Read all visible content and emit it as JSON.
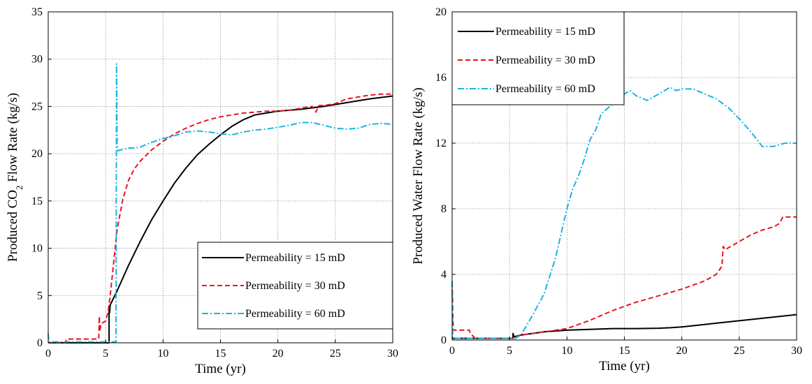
{
  "chart_data": [
    {
      "type": "line",
      "xlabel": "Time (yr)",
      "ylabel_parts": [
        "Produced CO",
        "2",
        " Flow Rate (kg/s)"
      ],
      "xlim": [
        0,
        30
      ],
      "ylim": [
        0,
        35
      ],
      "xticks": [
        0,
        5,
        10,
        15,
        20,
        25,
        30
      ],
      "yticks": [
        0,
        5,
        10,
        15,
        20,
        25,
        30,
        35
      ],
      "grid": true,
      "legend_position": "bottom-right",
      "series": [
        {
          "name": "Permeability = 15 mD",
          "color": "#000000",
          "dash": "solid",
          "x": [
            0,
            5.3,
            5.3,
            5.35,
            5.4,
            6,
            7,
            8,
            9,
            10,
            11,
            12,
            13,
            14,
            15,
            16,
            17,
            18,
            19,
            20,
            22,
            24,
            26,
            28,
            30
          ],
          "y": [
            0,
            0,
            3.9,
            3.2,
            4.0,
            5.5,
            8.2,
            10.7,
            13.0,
            15.0,
            16.9,
            18.5,
            19.9,
            21.0,
            22.0,
            22.9,
            23.6,
            24.1,
            24.3,
            24.5,
            24.7,
            25.0,
            25.4,
            25.8,
            26.1
          ]
        },
        {
          "name": "Permeability = 30 mD",
          "color": "#e8141e",
          "dash": "dashed",
          "x": [
            0,
            1.5,
            1.6,
            4.4,
            4.45,
            4.5,
            4.6,
            4.7,
            5.0,
            5.2,
            5.4,
            5.7,
            6.0,
            6.5,
            7,
            7.5,
            8,
            9,
            10,
            11,
            12,
            13,
            14,
            15,
            16,
            17,
            18,
            19,
            20,
            21,
            22,
            23,
            23.3,
            23.6,
            24,
            25,
            26,
            27,
            28,
            29,
            30
          ],
          "y": [
            0,
            0,
            0.4,
            0.4,
            2.8,
            1.2,
            2.0,
            2.1,
            2.3,
            3.2,
            5.0,
            8.5,
            12.0,
            15.2,
            17.2,
            18.4,
            19.2,
            20.4,
            21.3,
            22.1,
            22.7,
            23.2,
            23.6,
            23.9,
            24.1,
            24.3,
            24.4,
            24.5,
            24.5,
            24.6,
            24.8,
            25.0,
            24.4,
            25.1,
            25.1,
            25.3,
            25.8,
            26.0,
            26.2,
            26.3,
            26.3
          ]
        },
        {
          "name": "Permeability = 60 mD",
          "color": "#1cb4e0",
          "dash": "dashdot",
          "x": [
            0,
            0.05,
            0.1,
            5.9,
            5.95,
            6.0,
            6.1,
            6.3,
            6.6,
            7,
            7.5,
            8,
            9,
            10,
            11,
            12,
            13,
            14,
            15,
            16,
            17,
            18,
            19,
            20,
            21,
            22,
            23,
            24,
            25,
            26,
            27,
            28,
            29,
            30
          ],
          "y": [
            1.0,
            0.1,
            0.1,
            0.1,
            29.5,
            21.0,
            20.3,
            20.4,
            20.5,
            20.6,
            20.6,
            20.7,
            21.2,
            21.6,
            21.9,
            22.3,
            22.4,
            22.3,
            22.1,
            22.0,
            22.3,
            22.5,
            22.6,
            22.8,
            23.0,
            23.3,
            23.3,
            23.0,
            22.7,
            22.6,
            22.7,
            23.1,
            23.2,
            23.1
          ]
        }
      ]
    },
    {
      "type": "line",
      "xlabel": "Time (yr)",
      "ylabel_parts": [
        "Produced Water Flow Rate (kg/s)"
      ],
      "xlim": [
        0,
        30
      ],
      "ylim": [
        0,
        20
      ],
      "xticks": [
        0,
        5,
        10,
        15,
        20,
        25,
        30
      ],
      "yticks": [
        0,
        4,
        8,
        12,
        16,
        20
      ],
      "grid": true,
      "legend_position": "top-left",
      "series": [
        {
          "name": "Permeability = 15 mD",
          "color": "#000000",
          "dash": "solid",
          "x": [
            0,
            0.05,
            1.5,
            5.3,
            5.3,
            5.4,
            6,
            7,
            8,
            10,
            12,
            14,
            16,
            18,
            19,
            20,
            22,
            24,
            26,
            28,
            30
          ],
          "y": [
            0.2,
            0.1,
            0.1,
            0.1,
            0.4,
            0.2,
            0.3,
            0.4,
            0.5,
            0.6,
            0.65,
            0.7,
            0.7,
            0.72,
            0.75,
            0.8,
            0.95,
            1.1,
            1.25,
            1.4,
            1.55
          ]
        },
        {
          "name": "Permeability = 30 mD",
          "color": "#e8141e",
          "dash": "dashed",
          "x": [
            0,
            0.1,
            1.5,
            1.6,
            2.0,
            5.3,
            6,
            8,
            10,
            12,
            14,
            16,
            18,
            20,
            22,
            23,
            23.5,
            23.6,
            23.8,
            24,
            25,
            26,
            27,
            28,
            28.5,
            28.8,
            29,
            29.5,
            30
          ],
          "y": [
            3.5,
            0.6,
            0.6,
            0.4,
            0.1,
            0.1,
            0.3,
            0.5,
            0.7,
            1.2,
            1.8,
            2.3,
            2.7,
            3.1,
            3.6,
            4.0,
            4.5,
            5.7,
            5.5,
            5.6,
            6.0,
            6.4,
            6.7,
            6.9,
            7.1,
            7.5,
            7.5,
            7.5,
            7.5
          ]
        },
        {
          "name": "Permeability = 60 mD",
          "color": "#1cb4e0",
          "dash": "dashdot",
          "x": [
            0,
            0.05,
            5.0,
            5.5,
            6.0,
            7,
            8,
            9,
            10,
            10.5,
            11,
            11.5,
            12,
            12.5,
            13,
            14,
            15,
            15.5,
            16,
            17,
            18,
            19,
            19.5,
            20,
            21,
            22,
            23,
            24,
            25,
            26,
            27,
            28,
            29,
            30
          ],
          "y": [
            3.6,
            0.1,
            0.1,
            0.1,
            0.3,
            1.5,
            2.8,
            5.0,
            8.0,
            9.2,
            10.0,
            11.0,
            12.2,
            12.8,
            13.8,
            14.4,
            15.0,
            15.2,
            14.9,
            14.6,
            15.0,
            15.4,
            15.2,
            15.3,
            15.3,
            15.0,
            14.7,
            14.2,
            13.5,
            12.7,
            11.8,
            11.8,
            12.0,
            12.0
          ]
        }
      ]
    }
  ]
}
